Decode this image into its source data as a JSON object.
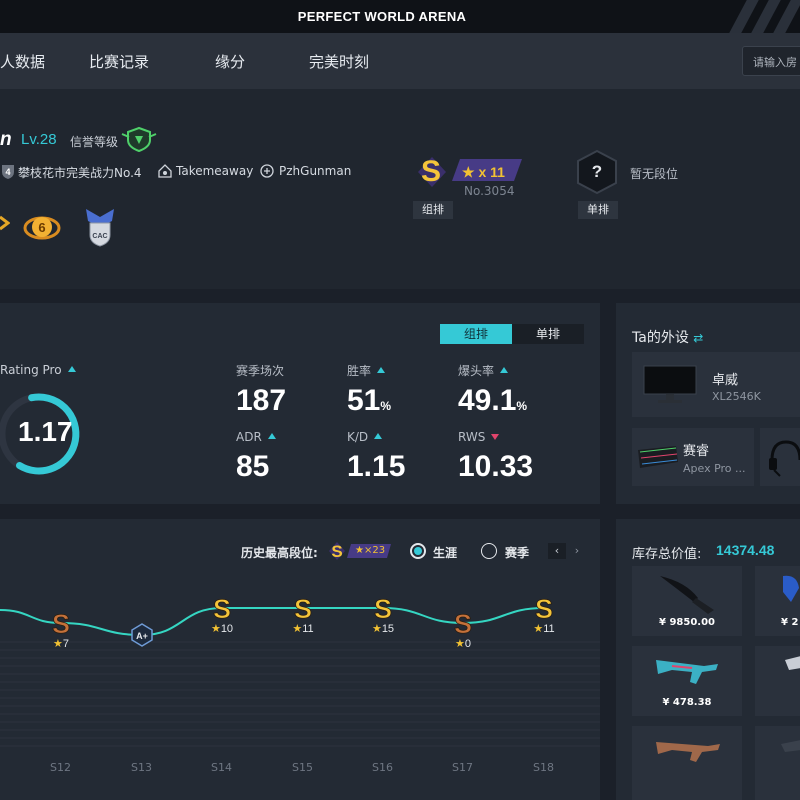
{
  "header": {
    "title": "PERFECT WORLD ARENA"
  },
  "nav": {
    "items": [
      "人数据",
      "比赛记录",
      "缘分",
      "完美时刻"
    ],
    "search_placeholder": "请输入房"
  },
  "profile": {
    "name_fragment": "n",
    "level": "Lv.28",
    "credit_label": "信誉等级",
    "tag_rank_num": "4",
    "tag_rank": "攀枝花市完美战力No.4",
    "tag_user1": "Takemeaway",
    "tag_user2": "PzhGunman",
    "group_rank": {
      "letter": "S",
      "stars": "★ x 11",
      "no": "No.3054",
      "label": "组排"
    },
    "solo_rank": {
      "mark": "?",
      "label": "单排",
      "status": "暂无段位"
    }
  },
  "stats": {
    "tabs": [
      "组排",
      "单排"
    ],
    "rating_label": "Rating Pro",
    "rating": "1.17",
    "rating_fraction": 0.62,
    "items": [
      {
        "label": "赛季场次",
        "value": "187",
        "unit": "",
        "trend": "none"
      },
      {
        "label": "胜率",
        "value": "51",
        "unit": "%",
        "trend": "up"
      },
      {
        "label": "爆头率",
        "value": "49.1",
        "unit": "%",
        "trend": "up"
      },
      {
        "label": "ADR",
        "value": "85",
        "unit": "",
        "trend": "up"
      },
      {
        "label": "K/D",
        "value": "1.15",
        "unit": "",
        "trend": "up"
      },
      {
        "label": "RWS",
        "value": "10.33",
        "unit": "",
        "trend": "down"
      }
    ]
  },
  "gear": {
    "title": "Ta的外设",
    "items": [
      {
        "brand": "卓威",
        "model": "XL2546K"
      },
      {
        "brand": "赛睿",
        "model": "Apex Pro ..."
      }
    ]
  },
  "history": {
    "best_label": "历史最高段位:",
    "best_stars": "★×23",
    "radio_career": "生涯",
    "radio_season": "赛季",
    "seasons": [
      "S12",
      "S13",
      "S14",
      "S15",
      "S16",
      "S17",
      "S18"
    ],
    "ranks": [
      {
        "season": "S12",
        "rank": "S",
        "tier": "bronze",
        "stars": 7
      },
      {
        "season": "S13",
        "rank": "A+",
        "tier": "blue",
        "stars": null
      },
      {
        "season": "S14",
        "rank": "S",
        "tier": "gold",
        "stars": 10
      },
      {
        "season": "S15",
        "rank": "S",
        "tier": "gold",
        "stars": 11
      },
      {
        "season": "S16",
        "rank": "S",
        "tier": "gold",
        "stars": 15
      },
      {
        "season": "S17",
        "rank": "S",
        "tier": "bronze",
        "stars": 0
      },
      {
        "season": "S18",
        "rank": "S",
        "tier": "gold",
        "stars": 11
      }
    ]
  },
  "inventory": {
    "label": "库存总价值:",
    "total": "14374.48",
    "items": [
      {
        "price": "¥ 9850.00"
      },
      {
        "price": "¥ 2"
      },
      {
        "price": "¥ 478.38"
      },
      {
        "price": ""
      }
    ]
  },
  "colors": {
    "accent": "#35c9d6",
    "gold": "#f2c233",
    "bg": "#1b2029"
  }
}
